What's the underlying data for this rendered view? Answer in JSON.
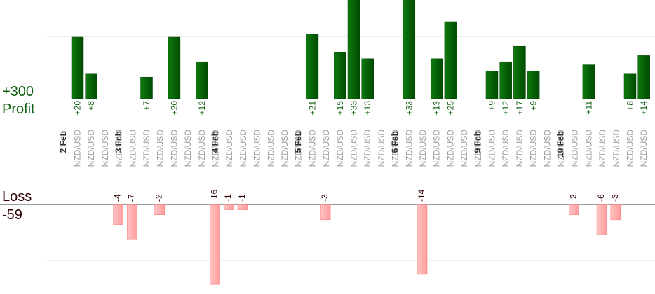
{
  "summary": {
    "profit_label": "Profit",
    "profit_total": "+300",
    "loss_label": "Loss",
    "loss_total": "-59"
  },
  "colors": {
    "profit_bar": "#0b6b0b",
    "profit_bar_dark": "#004800",
    "profit_text": "#106010",
    "loss_bar": "#ffb0b0",
    "loss_bar_edge": "#ff8080",
    "loss_text": "#300000",
    "date_text": "#333333",
    "pair_text": "#999999"
  },
  "chart_data": {
    "type": "bar",
    "y_scale_note": "profit panel clipped at top",
    "day_groups": [
      {
        "label": "2 Feb",
        "start": 0
      },
      {
        "label": "3 Feb",
        "start": 4
      },
      {
        "label": "4 Feb",
        "start": 11
      },
      {
        "label": "5 Feb",
        "start": 17
      },
      {
        "label": "6 Feb",
        "start": 24
      },
      {
        "label": "9 Feb",
        "start": 30
      },
      {
        "label": "10 Feb",
        "start": 36
      }
    ],
    "trades": [
      {
        "pair": "NZD/USD",
        "value": 20,
        "label": "+20"
      },
      {
        "pair": "NZD/USD",
        "value": 8,
        "label": "+8"
      },
      {
        "pair": "NZD/USD",
        "value": 0,
        "label": ""
      },
      {
        "pair": "NZD/USD",
        "value": -4,
        "label": "-4"
      },
      {
        "pair": "NZD/USD",
        "value": -7,
        "label": "-7"
      },
      {
        "pair": "NZD/USD",
        "value": 7,
        "label": "+7"
      },
      {
        "pair": "NZD/USD",
        "value": -2,
        "label": "-2"
      },
      {
        "pair": "NZD/USD",
        "value": 20,
        "label": "+20"
      },
      {
        "pair": "NZD/USD",
        "value": 0,
        "label": ""
      },
      {
        "pair": "NZD/USD",
        "value": 12,
        "label": "+12"
      },
      {
        "pair": "NZD/USD",
        "value": -16,
        "label": "-16"
      },
      {
        "pair": "NZD/USD",
        "value": -1,
        "label": "-1"
      },
      {
        "pair": "NZD/USD",
        "value": -1,
        "label": "-1"
      },
      {
        "pair": "NZD/USD",
        "value": 0,
        "label": ""
      },
      {
        "pair": "NZD/USD",
        "value": 0,
        "label": ""
      },
      {
        "pair": "NZD/USD",
        "value": 0,
        "label": ""
      },
      {
        "pair": "NZD/USD",
        "value": 0,
        "label": ""
      },
      {
        "pair": "NZD/USD",
        "value": 21,
        "label": "+21"
      },
      {
        "pair": "NZD/USD",
        "value": -3,
        "label": "-3"
      },
      {
        "pair": "NZD/USD",
        "value": 15,
        "label": "+15"
      },
      {
        "pair": "NZD/USD",
        "value": 33,
        "label": "+33"
      },
      {
        "pair": "NZD/USD",
        "value": 13,
        "label": "+13"
      },
      {
        "pair": "NZD/USD",
        "value": 0,
        "label": ""
      },
      {
        "pair": "NZD/USD",
        "value": 0,
        "label": ""
      },
      {
        "pair": "NZD/USD",
        "value": 33,
        "label": "+33"
      },
      {
        "pair": "NZD/USD",
        "value": -14,
        "label": "-14"
      },
      {
        "pair": "NZD/USD",
        "value": 13,
        "label": "+13"
      },
      {
        "pair": "NZD/USD",
        "value": 25,
        "label": "+25"
      },
      {
        "pair": "NZD/USD",
        "value": 0,
        "label": ""
      },
      {
        "pair": "NZD/USD",
        "value": 0,
        "label": ""
      },
      {
        "pair": "NZD/USD",
        "value": 9,
        "label": "+9"
      },
      {
        "pair": "NZD/USD",
        "value": 12,
        "label": "+12"
      },
      {
        "pair": "NZD/USD",
        "value": 17,
        "label": "+17"
      },
      {
        "pair": "NZD/USD",
        "value": 9,
        "label": "+9"
      },
      {
        "pair": "NZD/USD",
        "value": 0,
        "label": ""
      },
      {
        "pair": "NZD/USD",
        "value": 0,
        "label": ""
      },
      {
        "pair": "NZD/USD",
        "value": -2,
        "label": "-2"
      },
      {
        "pair": "NZD/USD",
        "value": 11,
        "label": "+11"
      },
      {
        "pair": "NZD/USD",
        "value": -6,
        "label": "-6"
      },
      {
        "pair": "NZD/USD",
        "value": -3,
        "label": "-3"
      },
      {
        "pair": "NZD/USD",
        "value": 8,
        "label": "+8"
      },
      {
        "pair": "NZD/USD",
        "value": 14,
        "label": "+14"
      }
    ]
  }
}
